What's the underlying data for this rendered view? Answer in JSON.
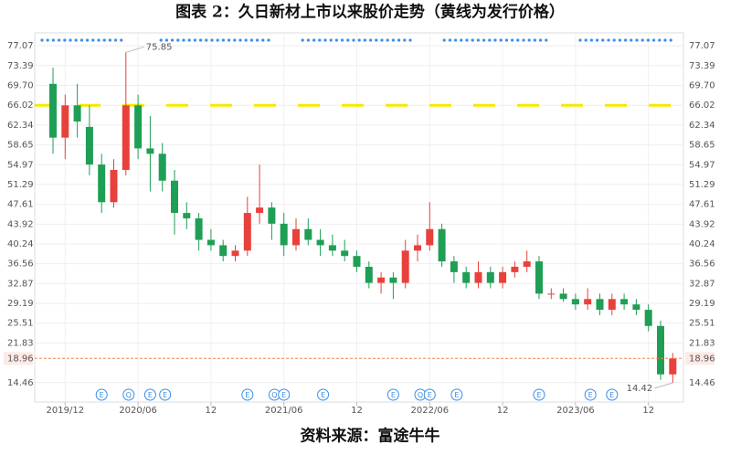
{
  "chart_data": {
    "type": "candlestick",
    "title": "图表 2：久日新材上市以来股价走势（黄线为发行价格）",
    "source": "资料来源：富途牛牛",
    "x": [
      "2019/11",
      "2019/12",
      "2020/01",
      "2020/02",
      "2020/03",
      "2020/04",
      "2020/05",
      "2020/06",
      "2020/07",
      "2020/08",
      "2020/09",
      "2020/10",
      "2020/11",
      "2020/12",
      "2021/01",
      "2021/02",
      "2021/03",
      "2021/04",
      "2021/05",
      "2021/06",
      "2021/07",
      "2021/08",
      "2021/09",
      "2021/10",
      "2021/11",
      "2021/12",
      "2022/01",
      "2022/02",
      "2022/03",
      "2022/04",
      "2022/05",
      "2022/06",
      "2022/07",
      "2022/08",
      "2022/09",
      "2022/10",
      "2022/11",
      "2022/12",
      "2023/01",
      "2023/02",
      "2023/03",
      "2023/04",
      "2023/05",
      "2023/06",
      "2023/07",
      "2023/08",
      "2023/09",
      "2023/10",
      "2023/11",
      "2023/12",
      "2024/01",
      "2024/02"
    ],
    "open": [
      70,
      60,
      66,
      62,
      55,
      48,
      54,
      66,
      58,
      57,
      52,
      46,
      45,
      41,
      40,
      38,
      39,
      46,
      47,
      44,
      40,
      43,
      41,
      40,
      39,
      38,
      36,
      33,
      34,
      33,
      39,
      40,
      43,
      37,
      35,
      33,
      35,
      33,
      35,
      36,
      37,
      31,
      31,
      30,
      29,
      30,
      28,
      30,
      29,
      28,
      25,
      16
    ],
    "high": [
      73,
      68,
      70,
      66,
      57,
      56,
      75.85,
      68,
      64,
      59,
      54,
      48,
      46,
      43,
      41,
      40,
      49,
      55,
      48,
      46,
      45,
      45,
      43,
      42,
      41,
      39,
      37,
      35,
      35,
      41,
      42,
      48,
      44,
      38,
      36,
      37,
      36,
      36,
      37,
      39,
      38,
      32,
      32,
      31,
      32,
      31,
      31,
      31,
      30,
      29,
      26,
      20
    ],
    "low": [
      57,
      56,
      60,
      53,
      46,
      47,
      53,
      56,
      50,
      50,
      42,
      43,
      39,
      39,
      37,
      37,
      38,
      44,
      41,
      38,
      39,
      40,
      38,
      38,
      37,
      35,
      32,
      31,
      30,
      32,
      37,
      39,
      36,
      33,
      32,
      32,
      32,
      32,
      34,
      35,
      30,
      30,
      29.5,
      28,
      28,
      27,
      27,
      28,
      27,
      24,
      15,
      14.42
    ],
    "close": [
      60,
      66,
      63,
      55,
      48,
      54,
      66,
      58,
      57,
      52,
      46,
      45,
      41,
      40,
      38,
      39,
      46,
      47,
      44,
      40,
      43,
      41,
      40,
      39,
      38,
      36,
      33,
      34,
      33,
      39,
      40,
      43,
      37,
      35,
      33,
      35,
      33,
      35,
      36,
      37,
      31,
      31,
      30,
      29,
      30,
      28,
      30,
      29,
      28,
      25,
      16,
      18.96
    ],
    "up_color": "#e8413b",
    "down_color": "#1f9e55",
    "ylim": [
      10.86,
      79.47
    ],
    "yticks": [
      14.46,
      21.83,
      25.51,
      29.19,
      32.87,
      36.56,
      40.24,
      43.92,
      47.61,
      51.29,
      54.97,
      58.65,
      62.34,
      66.02,
      {
        "value": 69.7,
        "label": "69.70"
      },
      73.39,
      77.07
    ],
    "xticks": [
      "2019/12",
      "2020/06",
      {
        "value": "2020/12",
        "label": "12"
      },
      "2021/06",
      {
        "value": "2021/12",
        "label": "12"
      },
      "2022/06",
      {
        "value": "2022/12",
        "label": "12"
      },
      "2023/06",
      {
        "value": "2023/12",
        "label": "12"
      }
    ],
    "grid": true,
    "reference_line": {
      "value": 66.02,
      "color": "#f5e900"
    },
    "last_price_color": "#f0884a",
    "events": [
      {
        "date": "2020/03",
        "label": "E"
      },
      {
        "date": "2020/05",
        "label": "Q"
      },
      {
        "date": "2020/07",
        "label": "E"
      },
      {
        "date": "2020/08",
        "label": "E"
      },
      {
        "date": "2021/03",
        "label": "E"
      },
      {
        "date": "2021/05",
        "label": "Q"
      },
      {
        "date": "2021/06",
        "label": "E"
      },
      {
        "date": "2021/09",
        "label": "E"
      },
      {
        "date": "2022/03",
        "label": "E"
      },
      {
        "date": "2022/05",
        "label": "Q"
      },
      {
        "date": "2022/06",
        "label": "E"
      },
      {
        "date": "2022/08",
        "label": "E"
      },
      {
        "date": "2023/03",
        "label": "E"
      },
      {
        "date": "2023/07",
        "label": "E"
      },
      {
        "date": "2023/09",
        "label": "E"
      }
    ]
  }
}
